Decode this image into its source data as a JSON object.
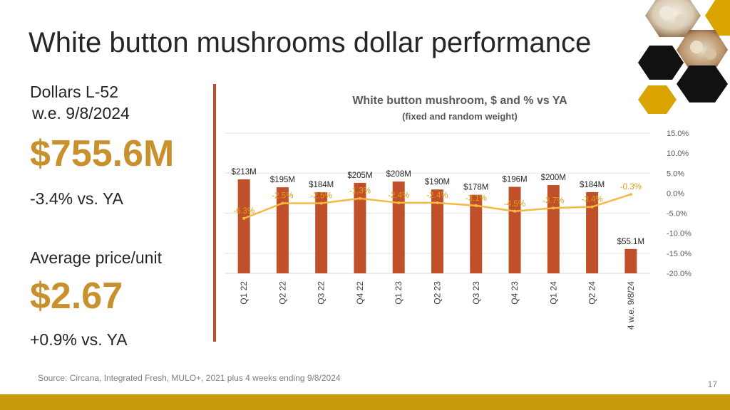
{
  "slide": {
    "title": "White button mushrooms dollar performance",
    "page_number": "17",
    "source": "Source: Circana, Integrated Fresh, MULO+, 2021 plus 4 weeks ending 9/8/2024"
  },
  "left_panel": {
    "dollars_label": "Dollars L-52",
    "week_label": "w.e. 9/8/2024",
    "dollars_value": "$755.6M",
    "dollars_change": "-3.4% vs. YA",
    "price_label": "Average price/unit",
    "price_value": "$2.67",
    "price_change": "+0.9% vs. YA"
  },
  "colors": {
    "accent_gold": "#c8912e",
    "bar_color": "#c0502a",
    "line_color": "#f5b942",
    "footer_bar": "#c69a0a"
  },
  "chart_data": {
    "type": "bar",
    "title": "White button mushroom, $ and % vs YA",
    "subtitle": "(fixed and random weight)",
    "categories": [
      "Q1 22",
      "Q2 22",
      "Q3 22",
      "Q4 22",
      "Q1 23",
      "Q2 23",
      "Q3 23",
      "Q4 23",
      "Q1 24",
      "Q2 24",
      "4 w.e. 9/8/24"
    ],
    "series": [
      {
        "type": "bar",
        "axis": "left",
        "values": [
          213,
          195,
          184,
          205,
          208,
          190,
          178,
          196,
          200,
          184,
          55.1
        ],
        "labels": [
          "$213M",
          "$195M",
          "$184M",
          "$205M",
          "$208M",
          "$190M",
          "$178M",
          "$196M",
          "$200M",
          "$184M",
          "$55.1M"
        ]
      },
      {
        "type": "line",
        "axis": "right",
        "values": [
          -6.3,
          -2.5,
          -2.5,
          -1.3,
          -2.4,
          -2.4,
          -3.1,
          -4.5,
          -3.7,
          -3.4,
          -0.3
        ],
        "labels": [
          "-6.3%",
          "-2.5%",
          "-2.5%",
          "-1.3%",
          "-2.4%",
          "-2.4%",
          "-3.1%",
          "-4.5%",
          "-3.7%",
          "-3.4%",
          "-0.3%"
        ]
      }
    ],
    "y2_ticks": [
      "15.0%",
      "10.0%",
      "5.0%",
      "0.0%",
      "-5.0%",
      "-10.0%",
      "-15.0%",
      "-20.0%"
    ],
    "y2lim": [
      -20,
      15
    ],
    "grid": true,
    "legend": "none"
  }
}
